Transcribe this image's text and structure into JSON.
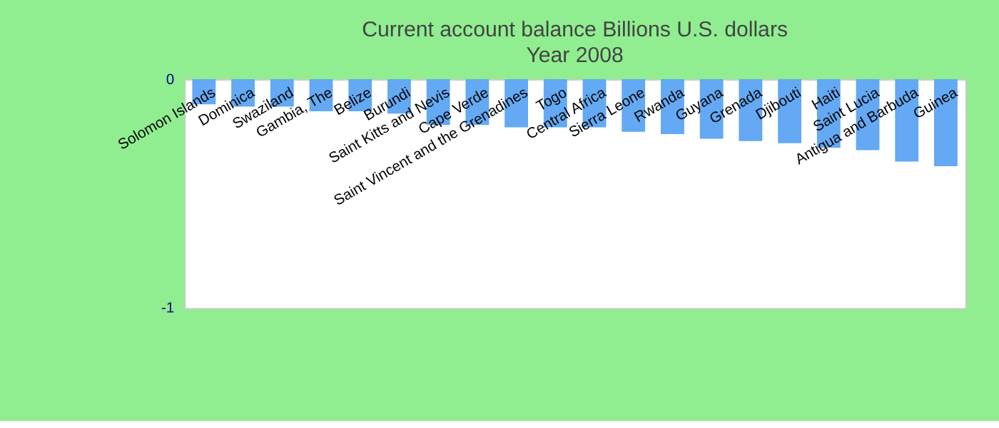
{
  "chart_data": {
    "type": "bar",
    "title": "Current account balance Billions U.S. dollars",
    "subtitle": "Year 2008",
    "categories": [
      "Solomon Islands",
      "Dominica",
      "Swaziland",
      "Gambia, The",
      "Belize",
      "Burundi",
      "Saint Kitts and Nevis",
      "Cape Verde",
      "Saint Vincent and the Grenadines",
      "Togo",
      "Central Africa",
      "Sierra Leone",
      "Rwanda",
      "Guyana",
      "Grenada",
      "Djibouti",
      "Haiti",
      "Saint Lucia",
      "Antigua and Barbuda",
      "Guinea"
    ],
    "values": [
      -0.11,
      -0.12,
      -0.12,
      -0.14,
      -0.14,
      -0.15,
      -0.2,
      -0.2,
      -0.21,
      -0.21,
      -0.21,
      -0.23,
      -0.24,
      -0.26,
      -0.27,
      -0.28,
      -0.3,
      -0.31,
      -0.36,
      -0.38
    ],
    "color": "#63a9f3",
    "ylim": [
      -1,
      0
    ],
    "yticks": [
      0,
      -1
    ],
    "grid": false
  }
}
